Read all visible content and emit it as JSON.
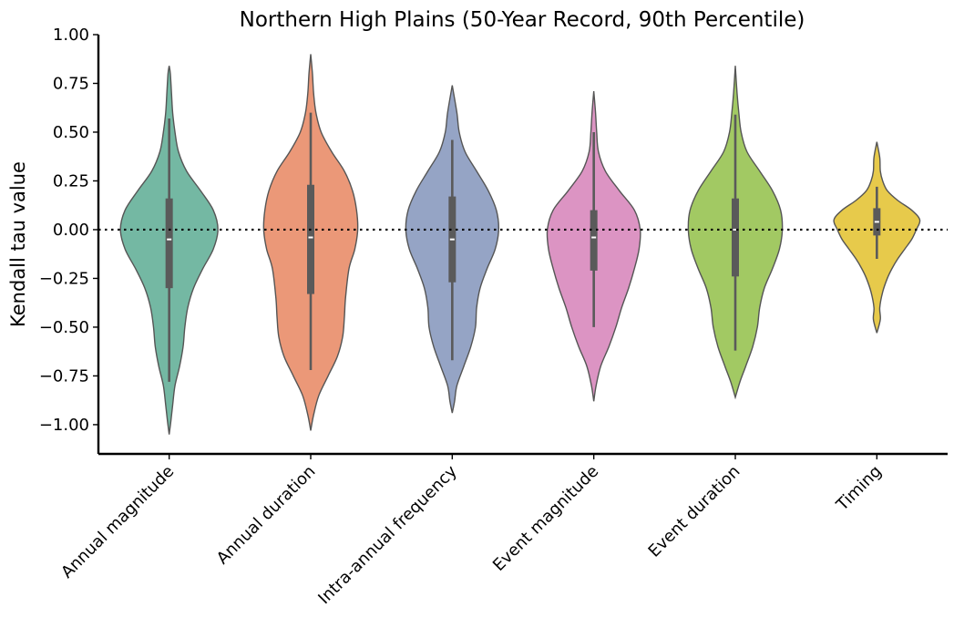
{
  "chart_data": {
    "type": "violin",
    "title": "Northern High Plains (50-Year Record, 90th Percentile)",
    "xlabel": "",
    "ylabel": "Kendall tau value",
    "ylim": [
      -1.15,
      1.0
    ],
    "yticks": [
      1.0,
      0.75,
      0.5,
      0.25,
      0.0,
      -0.25,
      -0.5,
      -0.75,
      -1.0
    ],
    "ytick_labels": [
      "1.00",
      "0.75",
      "0.50",
      "0.25",
      "0.00",
      "−0.25",
      "−0.50",
      "−0.75",
      "−1.00"
    ],
    "reference_line": 0.0,
    "categories": [
      "Annual magnitude",
      "Annual duration",
      "Intra-annual frequency",
      "Event magnitude",
      "Event duration",
      "Timing"
    ],
    "series": [
      {
        "color": "#74b8a3",
        "range": [
          -1.05,
          0.84
        ],
        "quartiles": [
          -0.3,
          0.16
        ],
        "median": -0.05,
        "whiskers": [
          -0.78,
          0.57
        ],
        "density": [
          [
            -1.05,
            0
          ],
          [
            -0.98,
            0.03
          ],
          [
            -0.9,
            0.06
          ],
          [
            -0.8,
            0.1
          ],
          [
            -0.7,
            0.18
          ],
          [
            -0.6,
            0.24
          ],
          [
            -0.5,
            0.27
          ],
          [
            -0.4,
            0.32
          ],
          [
            -0.3,
            0.42
          ],
          [
            -0.2,
            0.58
          ],
          [
            -0.1,
            0.76
          ],
          [
            0.0,
            0.84
          ],
          [
            0.1,
            0.76
          ],
          [
            0.2,
            0.54
          ],
          [
            0.3,
            0.3
          ],
          [
            0.4,
            0.16
          ],
          [
            0.5,
            0.1
          ],
          [
            0.6,
            0.06
          ],
          [
            0.7,
            0.04
          ],
          [
            0.8,
            0.02
          ],
          [
            0.84,
            0
          ]
        ]
      },
      {
        "color": "#eb9878",
        "range": [
          -1.03,
          0.9
        ],
        "quartiles": [
          -0.33,
          0.23
        ],
        "median": -0.04,
        "whiskers": [
          -0.72,
          0.6
        ],
        "density": [
          [
            -1.03,
            0
          ],
          [
            -0.95,
            0.05
          ],
          [
            -0.85,
            0.14
          ],
          [
            -0.75,
            0.3
          ],
          [
            -0.65,
            0.46
          ],
          [
            -0.55,
            0.55
          ],
          [
            -0.45,
            0.58
          ],
          [
            -0.35,
            0.6
          ],
          [
            -0.2,
            0.66
          ],
          [
            -0.1,
            0.76
          ],
          [
            0.0,
            0.81
          ],
          [
            0.1,
            0.79
          ],
          [
            0.2,
            0.72
          ],
          [
            0.3,
            0.58
          ],
          [
            0.4,
            0.36
          ],
          [
            0.5,
            0.18
          ],
          [
            0.6,
            0.09
          ],
          [
            0.7,
            0.05
          ],
          [
            0.8,
            0.03
          ],
          [
            0.9,
            0
          ]
        ]
      },
      {
        "color": "#95a4c5",
        "range": [
          -0.94,
          0.74
        ],
        "quartiles": [
          -0.27,
          0.17
        ],
        "median": -0.05,
        "whiskers": [
          -0.67,
          0.46
        ],
        "density": [
          [
            -0.94,
            0
          ],
          [
            -0.88,
            0.04
          ],
          [
            -0.8,
            0.08
          ],
          [
            -0.7,
            0.2
          ],
          [
            -0.6,
            0.32
          ],
          [
            -0.5,
            0.4
          ],
          [
            -0.4,
            0.42
          ],
          [
            -0.3,
            0.48
          ],
          [
            -0.2,
            0.6
          ],
          [
            -0.1,
            0.74
          ],
          [
            0.0,
            0.8
          ],
          [
            0.1,
            0.76
          ],
          [
            0.2,
            0.62
          ],
          [
            0.3,
            0.42
          ],
          [
            0.4,
            0.22
          ],
          [
            0.5,
            0.12
          ],
          [
            0.6,
            0.08
          ],
          [
            0.74,
            0
          ]
        ]
      },
      {
        "color": "#dc94c3",
        "range": [
          -0.88,
          0.71
        ],
        "quartiles": [
          -0.21,
          0.1
        ],
        "median": -0.04,
        "whiskers": [
          -0.5,
          0.5
        ],
        "density": [
          [
            -0.88,
            0
          ],
          [
            -0.8,
            0.04
          ],
          [
            -0.7,
            0.12
          ],
          [
            -0.6,
            0.26
          ],
          [
            -0.5,
            0.38
          ],
          [
            -0.4,
            0.48
          ],
          [
            -0.3,
            0.6
          ],
          [
            -0.2,
            0.7
          ],
          [
            -0.1,
            0.78
          ],
          [
            0.0,
            0.8
          ],
          [
            0.1,
            0.7
          ],
          [
            0.2,
            0.44
          ],
          [
            0.3,
            0.2
          ],
          [
            0.4,
            0.08
          ],
          [
            0.5,
            0.05
          ],
          [
            0.6,
            0.03
          ],
          [
            0.71,
            0
          ]
        ]
      },
      {
        "color": "#a2c963",
        "range": [
          -0.86,
          0.84
        ],
        "quartiles": [
          -0.24,
          0.16
        ],
        "median": 0.0,
        "whiskers": [
          -0.62,
          0.59
        ],
        "density": [
          [
            -0.86,
            0
          ],
          [
            -0.78,
            0.08
          ],
          [
            -0.7,
            0.18
          ],
          [
            -0.6,
            0.3
          ],
          [
            -0.5,
            0.38
          ],
          [
            -0.4,
            0.42
          ],
          [
            -0.3,
            0.5
          ],
          [
            -0.2,
            0.64
          ],
          [
            -0.1,
            0.76
          ],
          [
            0.0,
            0.81
          ],
          [
            0.1,
            0.78
          ],
          [
            0.2,
            0.64
          ],
          [
            0.3,
            0.42
          ],
          [
            0.4,
            0.2
          ],
          [
            0.5,
            0.1
          ],
          [
            0.6,
            0.06
          ],
          [
            0.7,
            0.03
          ],
          [
            0.84,
            0
          ]
        ]
      },
      {
        "color": "#e7ca4b",
        "range": [
          -0.53,
          0.45
        ],
        "quartiles": [
          -0.03,
          0.11
        ],
        "median": 0.04,
        "whiskers": [
          -0.15,
          0.22
        ],
        "density": [
          [
            -0.53,
            0
          ],
          [
            -0.46,
            0.06
          ],
          [
            -0.4,
            0.05
          ],
          [
            -0.32,
            0.1
          ],
          [
            -0.25,
            0.18
          ],
          [
            -0.2,
            0.26
          ],
          [
            -0.15,
            0.36
          ],
          [
            -0.1,
            0.48
          ],
          [
            -0.05,
            0.6
          ],
          [
            0.0,
            0.68
          ],
          [
            0.05,
            0.74
          ],
          [
            0.1,
            0.6
          ],
          [
            0.15,
            0.36
          ],
          [
            0.2,
            0.18
          ],
          [
            0.25,
            0.1
          ],
          [
            0.3,
            0.06
          ],
          [
            0.37,
            0.05
          ],
          [
            0.45,
            0
          ]
        ]
      }
    ]
  }
}
